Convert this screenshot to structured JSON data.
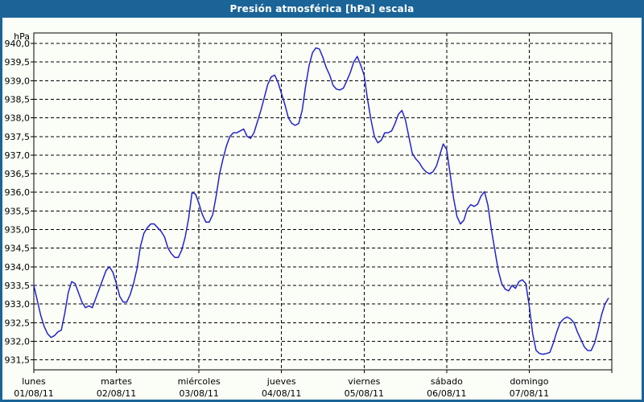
{
  "window": {
    "title": "Presión atmosférica [hPa] escala"
  },
  "colors": {
    "titlebar_bg": "#1a6498",
    "window_border": "#1a6498",
    "content_bg": "#fbfef7",
    "line_color": "#2323cb",
    "grid_color": "#000000",
    "text_color": "#000000",
    "title_text": "#ffffff"
  },
  "chart_data": {
    "type": "line",
    "title": "Presión atmosférica [hPa] escala",
    "unit_label": "hPa",
    "grid": {
      "horizontal": "dashed",
      "vertical": "dashed at day boundaries",
      "frame": "solid"
    },
    "y_axis": {
      "tick_max": 940.0,
      "tick_min": 931.5,
      "tick_step": 0.5,
      "tick_labels": [
        "940,0",
        "939,5",
        "939,0",
        "938,5",
        "938,0",
        "937,5",
        "937,0",
        "936,5",
        "936,0",
        "935,5",
        "935,0",
        "934,5",
        "934,0",
        "933,5",
        "933,0",
        "932,5",
        "932,0",
        "931,5"
      ]
    },
    "x_axis": {
      "points_per_day": 24,
      "total_days": 7,
      "days": [
        {
          "name": "lunes",
          "date": "01/08/11"
        },
        {
          "name": "martes",
          "date": "02/08/11"
        },
        {
          "name": "miércoles",
          "date": "03/08/11"
        },
        {
          "name": "jueves",
          "date": "04/08/11"
        },
        {
          "name": "viernes",
          "date": "05/08/11"
        },
        {
          "name": "sábado",
          "date": "06/08/11"
        },
        {
          "name": "domingo",
          "date": "07/08/11"
        }
      ]
    },
    "series": [
      {
        "name": "Presión atmosférica [hPa]",
        "color": "#2323cb",
        "values": [
          933.5,
          933.1,
          932.7,
          932.4,
          932.2,
          932.1,
          932.15,
          932.25,
          932.3,
          932.75,
          933.3,
          933.6,
          933.55,
          933.3,
          933.05,
          932.9,
          932.95,
          932.9,
          933.15,
          933.4,
          933.65,
          933.9,
          934.0,
          933.85,
          933.55,
          933.2,
          933.05,
          933.05,
          933.25,
          933.55,
          933.95,
          934.55,
          934.9,
          935.05,
          935.15,
          935.15,
          935.05,
          934.95,
          934.8,
          934.5,
          934.35,
          934.25,
          934.25,
          934.45,
          934.8,
          935.3,
          936.0,
          935.95,
          935.7,
          935.4,
          935.2,
          935.2,
          935.4,
          935.9,
          936.5,
          936.9,
          937.25,
          937.5,
          937.6,
          937.6,
          937.65,
          937.7,
          937.5,
          937.45,
          937.6,
          937.9,
          938.2,
          938.55,
          938.9,
          939.1,
          939.15,
          938.95,
          938.65,
          938.35,
          938.0,
          937.85,
          937.8,
          937.85,
          938.2,
          938.85,
          939.4,
          939.75,
          939.88,
          939.85,
          939.63,
          939.35,
          939.15,
          938.87,
          938.77,
          938.75,
          938.8,
          939.0,
          939.22,
          939.5,
          939.65,
          939.42,
          939.15,
          938.5,
          937.95,
          937.5,
          937.33,
          937.4,
          937.6,
          937.6,
          937.65,
          937.85,
          938.1,
          938.2,
          937.95,
          937.5,
          937.05,
          936.9,
          936.8,
          936.65,
          936.55,
          936.5,
          936.55,
          936.7,
          937.0,
          937.3,
          937.15,
          936.5,
          935.85,
          935.35,
          935.15,
          935.25,
          935.55,
          935.67,
          935.62,
          935.68,
          935.9,
          936.02,
          935.65,
          935.0,
          934.45,
          933.9,
          933.55,
          933.4,
          933.35,
          933.5,
          933.42,
          933.6,
          933.65,
          933.55,
          932.95,
          932.2,
          931.75,
          931.67,
          931.65,
          931.67,
          931.7,
          931.95,
          932.25,
          932.5,
          932.6,
          932.65,
          932.6,
          932.5,
          932.25,
          932.05,
          931.85,
          931.75,
          931.75,
          931.95,
          932.3,
          932.7,
          933.0,
          933.15
        ]
      }
    ]
  }
}
